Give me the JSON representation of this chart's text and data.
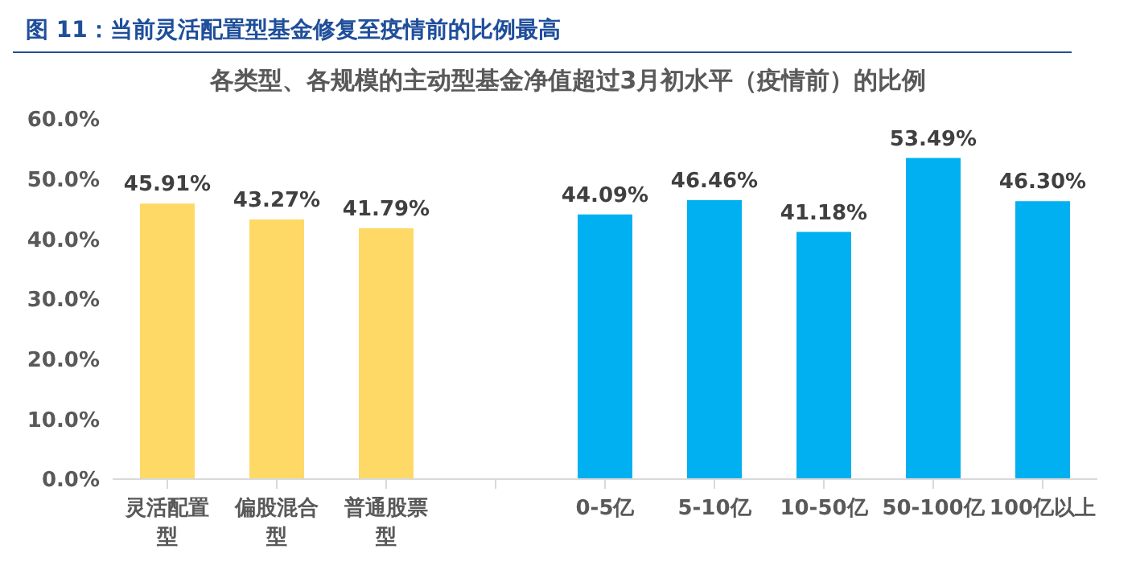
{
  "chart_data": {
    "type": "bar",
    "title": "图 11：当前灵活配置型基金修复至疫情前的比例最高",
    "subtitle": "各类型、各规模的主动型基金净值超过3月初水平（疫情前）的比例",
    "categories": [
      "灵活配置型",
      "偏股混合型",
      "普通股票型",
      null,
      "0-5亿",
      "5-10亿",
      "10-50亿",
      "50-100亿",
      "100亿以上"
    ],
    "values": [
      45.91,
      43.27,
      41.79,
      null,
      44.09,
      46.46,
      41.18,
      53.49,
      46.3
    ],
    "value_labels": [
      "45.91%",
      "43.27%",
      "41.79%",
      null,
      "44.09%",
      "46.46%",
      "41.18%",
      "53.49%",
      "46.30%"
    ],
    "colors": [
      "#ffd966",
      "#ffd966",
      "#ffd966",
      null,
      "#00b0f0",
      "#00b0f0",
      "#00b0f0",
      "#00b0f0",
      "#00b0f0"
    ],
    "ylim": [
      0,
      60
    ],
    "yticks": [
      {
        "value": 0,
        "label": "0.0%"
      },
      {
        "value": 10,
        "label": "10.0%"
      },
      {
        "value": 20,
        "label": "20.0%"
      },
      {
        "value": 30,
        "label": "30.0%"
      },
      {
        "value": 40,
        "label": "40.0%"
      },
      {
        "value": 50,
        "label": "50.0%"
      },
      {
        "value": 60,
        "label": "60.0%"
      }
    ],
    "grid": false,
    "legend": false
  }
}
